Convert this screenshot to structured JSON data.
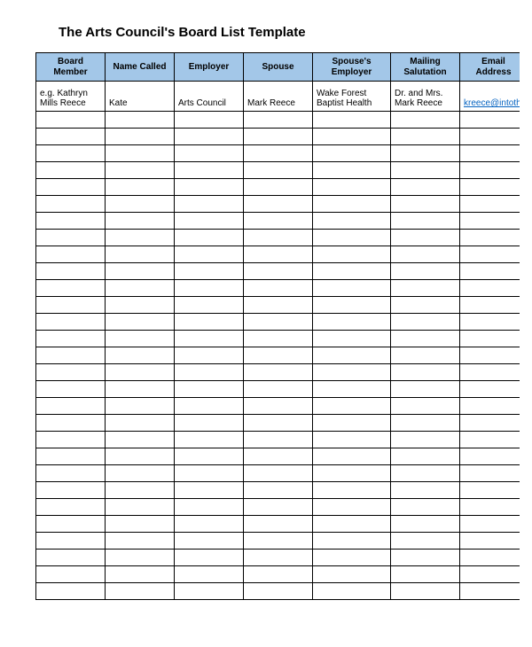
{
  "title": "The Arts Council's Board List Template",
  "table": {
    "header_bg": "#a3c7e8",
    "border_color": "#000000",
    "link_color": "#0563c1",
    "columns": [
      {
        "label": "Board Member",
        "width": 78
      },
      {
        "label": "Name Called",
        "width": 78
      },
      {
        "label": "Employer",
        "width": 78
      },
      {
        "label": "Spouse",
        "width": 78
      },
      {
        "label": "Spouse's Employer",
        "width": 88
      },
      {
        "label": "Mailing Salutation",
        "width": 78
      },
      {
        "label": "Email Address",
        "width": 76
      }
    ],
    "data_rows": [
      {
        "board_member": "e.g. Kathryn Mills Reece",
        "name_called": "Kate",
        "employer": "Arts Council",
        "spouse": "Mark Reece",
        "spouse_employer": "Wake Forest Baptist Health",
        "mailing_salutation": "Dr. and Mrs. Mark Reece",
        "email_address": "kreece@intoth",
        "email_is_link": true
      }
    ],
    "empty_row_count": 29
  }
}
